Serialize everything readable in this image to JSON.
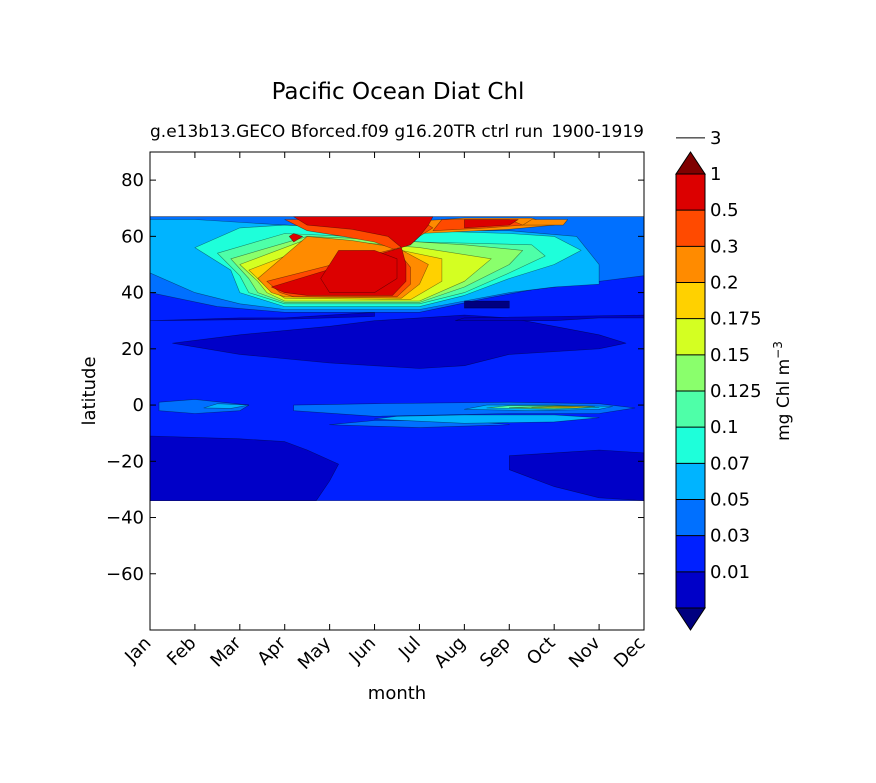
{
  "chart_data": {
    "type": "heatmap",
    "title": "Pacific Ocean Diat Chl",
    "subtitle_left": "g.e13b13.GECO Bforced.f09 g16.20TR ctrl run",
    "subtitle_right": "1900-1919",
    "xlabel": "month",
    "ylabel": "latitude",
    "x_categories": [
      "Jan",
      "Feb",
      "Mar",
      "Apr",
      "May",
      "Jun",
      "Jul",
      "Aug",
      "Sep",
      "Oct",
      "Nov",
      "Dec"
    ],
    "ylim": [
      -80,
      90
    ],
    "y_ticks": [
      80,
      60,
      40,
      20,
      0,
      -20,
      -40,
      -60
    ],
    "y_tick_labels": [
      "80",
      "60",
      "40",
      "20",
      "0",
      "−20",
      "−40",
      "−60"
    ],
    "data_lat_range": [
      -34,
      67
    ],
    "colorbar": {
      "label": "mg Chl m",
      "label_superscript": "−3",
      "tick_labels": [
        "0.01",
        "0.03",
        "0.05",
        "0.07",
        "0.1",
        "0.125",
        "0.15",
        "0.175",
        "0.2",
        "0.3",
        "0.5",
        "1",
        "3"
      ],
      "colors": [
        "#00007f",
        "#0000c8",
        "#0020ff",
        "#0070ff",
        "#00b4ff",
        "#1effda",
        "#4effa8",
        "#8aff6c",
        "#d4ff22",
        "#ffd100",
        "#ff8b00",
        "#ff4a00",
        "#dc0000",
        "#7f0000"
      ]
    },
    "regions": [
      {
        "level": 2,
        "points": [
          [
            0,
            -34
          ],
          [
            11,
            -34
          ],
          [
            11,
            67
          ],
          [
            0,
            67
          ]
        ]
      },
      {
        "level": 1,
        "points": [
          [
            0,
            -34
          ],
          [
            0,
            -11
          ],
          [
            2,
            -12
          ],
          [
            3,
            -13
          ],
          [
            3.5,
            -16
          ],
          [
            4.2,
            -21
          ],
          [
            4,
            -27
          ],
          [
            3.7,
            -34
          ]
        ]
      },
      {
        "level": 1,
        "points": [
          [
            11,
            -34
          ],
          [
            11,
            -17
          ],
          [
            10,
            -16
          ],
          [
            9,
            -17
          ],
          [
            8,
            -18
          ],
          [
            8,
            -23
          ],
          [
            9,
            -29
          ],
          [
            10,
            -33
          ]
        ]
      },
      {
        "level": 1,
        "points": [
          [
            0.5,
            22
          ],
          [
            2,
            25
          ],
          [
            4,
            28
          ],
          [
            5,
            30
          ],
          [
            6,
            31
          ],
          [
            7,
            32
          ],
          [
            8,
            31
          ],
          [
            9,
            28
          ],
          [
            10,
            25
          ],
          [
            10.6,
            22
          ],
          [
            10,
            20
          ],
          [
            8,
            18
          ],
          [
            7,
            14
          ],
          [
            6,
            13
          ],
          [
            4,
            15
          ],
          [
            2,
            18
          ]
        ]
      },
      {
        "level": 1,
        "points": [
          [
            0,
            30
          ],
          [
            2,
            31
          ],
          [
            3,
            31
          ],
          [
            4,
            32
          ],
          [
            5,
            33
          ],
          [
            5,
            31.5
          ],
          [
            3,
            30.5
          ]
        ]
      },
      {
        "level": 1,
        "points": [
          [
            6.8,
            30
          ],
          [
            9,
            30
          ],
          [
            10,
            31
          ],
          [
            11,
            31
          ],
          [
            11,
            32
          ],
          [
            9,
            31.5
          ],
          [
            7,
            31
          ]
        ]
      },
      {
        "level": 3,
        "points": [
          [
            0,
            40
          ],
          [
            1.5,
            35
          ],
          [
            3,
            33
          ],
          [
            6,
            33
          ],
          [
            7.5,
            38
          ],
          [
            8.5,
            41
          ],
          [
            9.5,
            43
          ],
          [
            11,
            46
          ],
          [
            11,
            67
          ],
          [
            0,
            67
          ]
        ]
      },
      {
        "level": 3,
        "points": [
          [
            0.2,
            -2
          ],
          [
            1,
            -3
          ],
          [
            2,
            -2
          ],
          [
            2.2,
            0
          ],
          [
            1,
            2
          ],
          [
            0.2,
            1
          ]
        ]
      },
      {
        "level": 3,
        "points": [
          [
            3.2,
            -2
          ],
          [
            5,
            -4
          ],
          [
            8,
            -3
          ],
          [
            10,
            -3
          ],
          [
            10.8,
            -1
          ],
          [
            10,
            0.5
          ],
          [
            8,
            1
          ],
          [
            5,
            0.5
          ],
          [
            3.2,
            0
          ]
        ]
      },
      {
        "level": 3,
        "points": [
          [
            4,
            -7
          ],
          [
            6,
            -8
          ],
          [
            8,
            -7
          ],
          [
            7,
            -5.5
          ],
          [
            5,
            -5.5
          ]
        ]
      },
      {
        "level": 4,
        "points": [
          [
            0,
            47
          ],
          [
            1,
            40
          ],
          [
            2,
            36
          ],
          [
            3,
            34
          ],
          [
            6,
            34
          ],
          [
            7,
            37
          ],
          [
            8,
            40
          ],
          [
            9,
            42
          ],
          [
            10,
            43
          ],
          [
            10,
            50
          ],
          [
            9.5,
            60
          ],
          [
            8,
            62
          ],
          [
            5,
            62
          ],
          [
            3,
            64
          ],
          [
            1,
            66
          ],
          [
            0,
            66
          ]
        ]
      },
      {
        "level": 4,
        "points": [
          [
            5,
            -5
          ],
          [
            7,
            -6.5
          ],
          [
            9,
            -6
          ],
          [
            10,
            -4.5
          ],
          [
            9,
            -3.5
          ],
          [
            7,
            -3.5
          ],
          [
            5.5,
            -4
          ]
        ]
      },
      {
        "level": 4,
        "points": [
          [
            7,
            -1.5
          ],
          [
            8.5,
            -2
          ],
          [
            10,
            -1.5
          ],
          [
            10.3,
            -0.5
          ],
          [
            9,
            0
          ],
          [
            7.5,
            0
          ]
        ]
      },
      {
        "level": 4,
        "points": [
          [
            1.2,
            -1
          ],
          [
            1.8,
            -1.2
          ],
          [
            2.2,
            0
          ],
          [
            1.5,
            0.5
          ]
        ]
      },
      {
        "level": 5,
        "points": [
          [
            1,
            56
          ],
          [
            1.8,
            48
          ],
          [
            2,
            40
          ],
          [
            3,
            35
          ],
          [
            6,
            35
          ],
          [
            7,
            39
          ],
          [
            8,
            45
          ],
          [
            9,
            50
          ],
          [
            9.6,
            55
          ],
          [
            9,
            60
          ],
          [
            8,
            61
          ],
          [
            6,
            62
          ],
          [
            4.5,
            63
          ],
          [
            3,
            64
          ],
          [
            2,
            63
          ]
        ]
      },
      {
        "level": 6,
        "points": [
          [
            1.5,
            54
          ],
          [
            2,
            46
          ],
          [
            2.2,
            40
          ],
          [
            3,
            36
          ],
          [
            6,
            36
          ],
          [
            7,
            40
          ],
          [
            8,
            47
          ],
          [
            8.8,
            53
          ],
          [
            8.5,
            57
          ],
          [
            6,
            58
          ],
          [
            4.5,
            60
          ],
          [
            3,
            61
          ]
        ]
      },
      {
        "level": 6,
        "points": [
          [
            7.5,
            -1
          ],
          [
            9,
            -1.5
          ],
          [
            10,
            -0.8
          ],
          [
            9,
            -0.2
          ],
          [
            8,
            -0.2
          ]
        ]
      },
      {
        "level": 7,
        "points": [
          [
            1.8,
            52
          ],
          [
            2.2,
            45
          ],
          [
            2.4,
            40
          ],
          [
            3,
            36.5
          ],
          [
            6,
            36.5
          ],
          [
            7,
            42
          ],
          [
            8,
            50
          ],
          [
            8.3,
            55
          ],
          [
            7,
            57
          ],
          [
            5,
            59
          ],
          [
            3.5,
            60
          ]
        ]
      },
      {
        "level": 7,
        "points": [
          [
            8,
            -0.9
          ],
          [
            9,
            -1.2
          ],
          [
            9.8,
            -0.6
          ],
          [
            9,
            -0.4
          ]
        ]
      },
      {
        "level": 8,
        "points": [
          [
            2,
            50
          ],
          [
            2.4,
            44
          ],
          [
            2.6,
            40
          ],
          [
            3,
            37
          ],
          [
            6,
            37
          ],
          [
            7,
            44
          ],
          [
            7.6,
            52
          ],
          [
            6,
            56
          ],
          [
            4.5,
            58
          ],
          [
            3.5,
            59
          ]
        ]
      },
      {
        "level": 9,
        "points": [
          [
            2.2,
            48
          ],
          [
            2.6,
            42
          ],
          [
            3,
            38
          ],
          [
            5.8,
            37.5
          ],
          [
            6.5,
            44
          ],
          [
            6.5,
            52
          ],
          [
            5,
            57
          ],
          [
            4,
            59
          ]
        ]
      },
      {
        "level": 9,
        "points": [
          [
            8.5,
            -0.8
          ],
          [
            9.5,
            -1
          ],
          [
            9.9,
            -0.5
          ],
          [
            9,
            -0.5
          ]
        ]
      },
      {
        "level": 10,
        "points": [
          [
            2.4,
            45
          ],
          [
            2.7,
            40
          ],
          [
            3,
            38.5
          ],
          [
            5.6,
            38
          ],
          [
            6,
            43
          ],
          [
            6.2,
            50
          ],
          [
            5.5,
            56
          ],
          [
            4.5,
            58.5
          ],
          [
            3.5,
            60
          ]
        ]
      },
      {
        "level": 10,
        "points": [
          [
            6,
            61
          ],
          [
            8,
            62.5
          ],
          [
            9,
            64
          ],
          [
            8.5,
            66.5
          ],
          [
            7,
            66.5
          ],
          [
            6,
            65.5
          ]
        ]
      },
      {
        "level": 10,
        "points": [
          [
            8.3,
            64
          ],
          [
            9.2,
            64
          ],
          [
            9.3,
            66
          ],
          [
            8.5,
            66
          ]
        ]
      },
      {
        "level": 11,
        "points": [
          [
            2.6,
            44
          ],
          [
            2.9,
            40
          ],
          [
            3.2,
            38.5
          ],
          [
            5.5,
            38.5
          ],
          [
            5.8,
            43
          ],
          [
            5.8,
            49
          ],
          [
            5.5,
            55
          ],
          [
            5,
            58
          ],
          [
            4.3,
            60
          ],
          [
            3.5,
            62
          ],
          [
            3,
            66
          ],
          [
            6,
            66
          ],
          [
            6.3,
            63
          ],
          [
            6,
            60
          ],
          [
            5.8,
            57
          ]
        ]
      },
      {
        "level": 11,
        "points": [
          [
            6.3,
            62
          ],
          [
            7.5,
            63
          ],
          [
            8.3,
            64
          ],
          [
            8,
            66
          ],
          [
            6.5,
            66
          ]
        ]
      },
      {
        "level": 12,
        "points": [
          [
            2.7,
            42
          ],
          [
            3,
            40
          ],
          [
            3.5,
            39
          ],
          [
            5.4,
            39
          ],
          [
            5.7,
            44
          ],
          [
            5.7,
            50
          ],
          [
            5.6,
            56
          ],
          [
            5.3,
            60
          ],
          [
            4.5,
            62.5
          ],
          [
            3.5,
            64
          ],
          [
            3.2,
            67
          ],
          [
            6.3,
            67
          ],
          [
            6.2,
            64
          ],
          [
            6,
            60
          ],
          [
            5.8,
            57
          ]
        ]
      },
      {
        "level": 12,
        "points": [
          [
            3.8,
            45
          ],
          [
            4,
            40
          ],
          [
            5,
            40
          ],
          [
            5.5,
            45
          ],
          [
            5.5,
            52
          ],
          [
            5,
            55
          ],
          [
            4.2,
            55
          ]
        ]
      },
      {
        "level": 12,
        "points": [
          [
            7,
            63
          ],
          [
            8,
            64
          ],
          [
            8.2,
            66
          ],
          [
            7,
            66
          ]
        ]
      },
      {
        "level": 12,
        "points": [
          [
            3.1,
            60
          ],
          [
            3.2,
            58
          ],
          [
            3.4,
            60
          ],
          [
            3.2,
            61
          ]
        ]
      },
      {
        "level": 0,
        "points": [
          [
            7,
            34.5
          ],
          [
            8,
            34.5
          ],
          [
            8,
            37
          ],
          [
            7,
            37
          ]
        ]
      }
    ]
  }
}
